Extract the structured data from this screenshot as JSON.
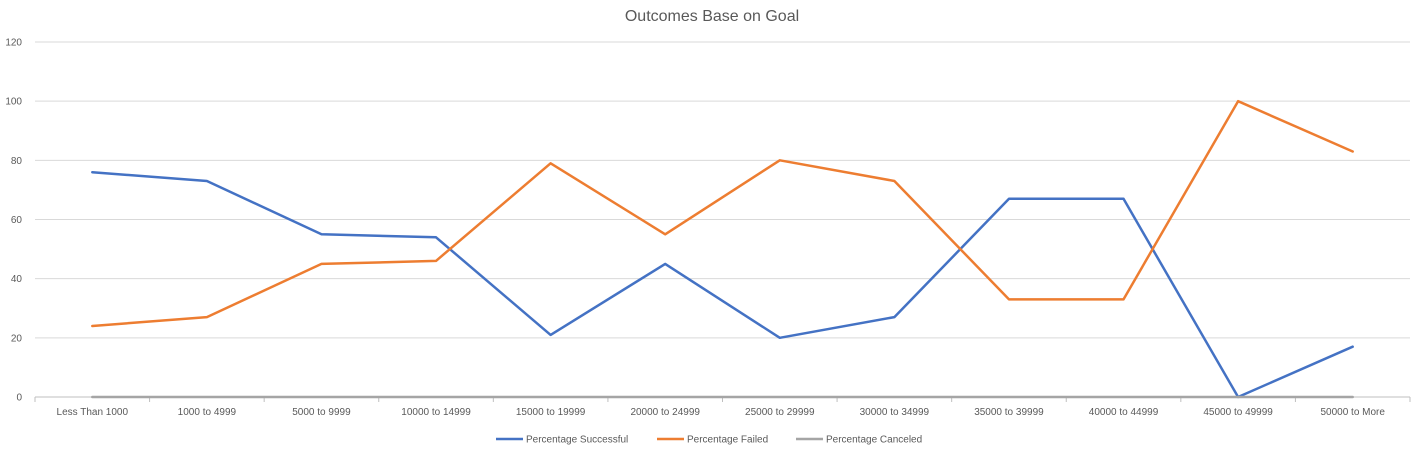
{
  "chart_data": {
    "type": "line",
    "title": "Outcomes Base on Goal",
    "xlabel": "",
    "ylabel": "",
    "ylim": [
      0,
      120
    ],
    "yticks": [
      0,
      20,
      40,
      60,
      80,
      100,
      120
    ],
    "grid": true,
    "legend_position": "bottom",
    "categories": [
      "Less Than 1000",
      "1000 to 4999",
      "5000 to 9999",
      "10000 to 14999",
      "15000 to 19999",
      "20000 to 24999",
      "25000 to 29999",
      "30000 to 34999",
      "35000 to 39999",
      "40000 to 44999",
      "45000 to 49999",
      "50000 to More"
    ],
    "series": [
      {
        "name": "Percentage Successful",
        "color": "#4472c4",
        "values": [
          76,
          73,
          55,
          54,
          21,
          45,
          20,
          27,
          67,
          67,
          0,
          17
        ]
      },
      {
        "name": "Percentage Failed",
        "color": "#ed7d31",
        "values": [
          24,
          27,
          45,
          46,
          79,
          55,
          80,
          73,
          33,
          33,
          100,
          83
        ]
      },
      {
        "name": "Percentage Canceled",
        "color": "#a5a5a5",
        "values": [
          0,
          0,
          0,
          0,
          0,
          0,
          0,
          0,
          0,
          0,
          0,
          0
        ]
      }
    ]
  }
}
